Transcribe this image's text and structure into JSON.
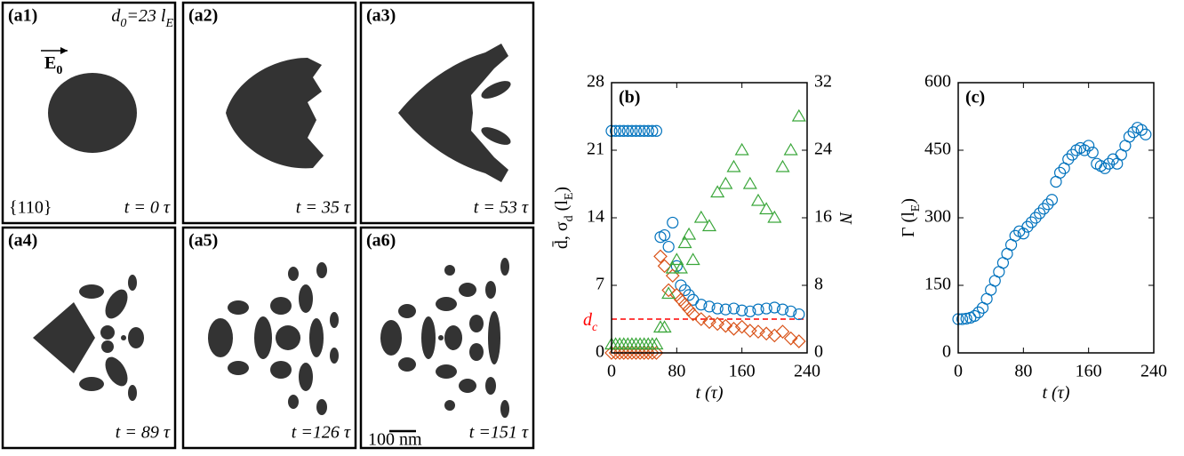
{
  "panels": [
    {
      "label": "(a1)",
      "time": "t = 0 τ"
    },
    {
      "label": "(a2)",
      "time": "t = 35 τ"
    },
    {
      "label": "(a3)",
      "time": "t = 53 τ"
    },
    {
      "label": "(a4)",
      "time": "t = 89 τ"
    },
    {
      "label": "(a5)",
      "time": "t =126 τ"
    },
    {
      "label": "(a6)",
      "time": "t =151 τ"
    }
  ],
  "initial_size": [
    "d",
    "0",
    "=23 l",
    "E"
  ],
  "orientation": "{110}",
  "field": [
    "E",
    "0"
  ],
  "scale_bar": "100 nm",
  "chart_data": [
    {
      "type": "scatter",
      "label": "(b)",
      "xlabel": [
        "t (τ)"
      ],
      "ylabel": [
        "d̄, σ",
        "d",
        " (l",
        "E",
        ")"
      ],
      "y2label": [
        "N"
      ],
      "xlim": [
        0,
        240
      ],
      "xticks": [
        0,
        80,
        160,
        240
      ],
      "ylim": [
        0,
        28
      ],
      "yticks": [
        0,
        7,
        14,
        21,
        28
      ],
      "y2lim": [
        0,
        32
      ],
      "y2ticks": [
        0,
        8,
        16,
        24,
        32
      ],
      "reference_line": {
        "value": 3.5,
        "color": "#ff0000",
        "label": [
          "d",
          "c"
        ]
      },
      "series": [
        {
          "marker": "circle",
          "color": "#0072bd",
          "x": [
            0,
            5,
            10,
            15,
            20,
            25,
            30,
            35,
            40,
            45,
            50,
            55,
            60,
            65,
            70,
            75,
            80,
            85,
            90,
            95,
            100,
            110,
            120,
            130,
            140,
            150,
            160,
            170,
            180,
            190,
            200,
            210,
            220,
            230
          ],
          "values": [
            23,
            23,
            23,
            23,
            23,
            23,
            23,
            23,
            23,
            23,
            23,
            23,
            12,
            12.2,
            11,
            13.5,
            9,
            7,
            6.5,
            6,
            5.5,
            5,
            4.8,
            4.6,
            4.5,
            4.6,
            4.4,
            4.3,
            4.5,
            4.6,
            4.7,
            4.5,
            4.3,
            4.0
          ]
        },
        {
          "marker": "diamond",
          "color": "#d95319",
          "x": [
            0,
            5,
            10,
            15,
            20,
            25,
            30,
            35,
            40,
            45,
            50,
            55,
            60,
            65,
            70,
            75,
            80,
            85,
            90,
            95,
            100,
            110,
            120,
            130,
            140,
            150,
            160,
            170,
            180,
            190,
            200,
            210,
            220,
            230
          ],
          "values": [
            0,
            0,
            0,
            0,
            0,
            0,
            0,
            0,
            0,
            0,
            0,
            0,
            10,
            9,
            6.5,
            8,
            6,
            5.5,
            5,
            4.5,
            4,
            3.5,
            3.2,
            3,
            2.8,
            2.5,
            2.7,
            2.3,
            2.2,
            2,
            1.8,
            2.2,
            1.5,
            1.2
          ]
        },
        {
          "marker": "triangle",
          "color": "#3aa63a",
          "axis": "y2",
          "x": [
            0,
            5,
            10,
            15,
            20,
            25,
            30,
            35,
            40,
            45,
            50,
            55,
            60,
            65,
            70,
            75,
            80,
            85,
            90,
            95,
            100,
            110,
            120,
            130,
            140,
            150,
            160,
            170,
            180,
            190,
            200,
            210,
            220,
            230
          ],
          "values": [
            1,
            1,
            1,
            1,
            1,
            1,
            1,
            1,
            1,
            1,
            1,
            1,
            3,
            3,
            7,
            10,
            11,
            10,
            13,
            14,
            11,
            16,
            15,
            19,
            20,
            22,
            24,
            20,
            18,
            17,
            16,
            22,
            24,
            28
          ]
        }
      ]
    },
    {
      "type": "scatter",
      "label": "(c)",
      "xlabel": [
        "t (τ)"
      ],
      "ylabel": [
        "Γ (l",
        "E",
        ")"
      ],
      "xlim": [
        0,
        240
      ],
      "xticks": [
        0,
        80,
        160,
        240
      ],
      "ylim": [
        0,
        600
      ],
      "yticks": [
        0,
        150,
        300,
        450,
        600
      ],
      "series": [
        {
          "marker": "circle",
          "color": "#0072bd",
          "x": [
            0,
            5,
            10,
            15,
            20,
            25,
            30,
            35,
            40,
            45,
            50,
            55,
            60,
            65,
            70,
            75,
            80,
            85,
            90,
            95,
            100,
            105,
            110,
            115,
            120,
            125,
            130,
            135,
            140,
            145,
            150,
            155,
            160,
            165,
            170,
            175,
            180,
            185,
            190,
            195,
            200,
            205,
            210,
            215,
            220,
            225,
            230
          ],
          "values": [
            75,
            75,
            76,
            78,
            82,
            90,
            100,
            120,
            140,
            160,
            180,
            200,
            220,
            240,
            260,
            270,
            265,
            280,
            290,
            300,
            310,
            320,
            330,
            340,
            380,
            400,
            410,
            430,
            440,
            450,
            455,
            450,
            460,
            445,
            420,
            415,
            410,
            420,
            430,
            420,
            440,
            460,
            480,
            490,
            500,
            495,
            485
          ]
        }
      ]
    }
  ]
}
